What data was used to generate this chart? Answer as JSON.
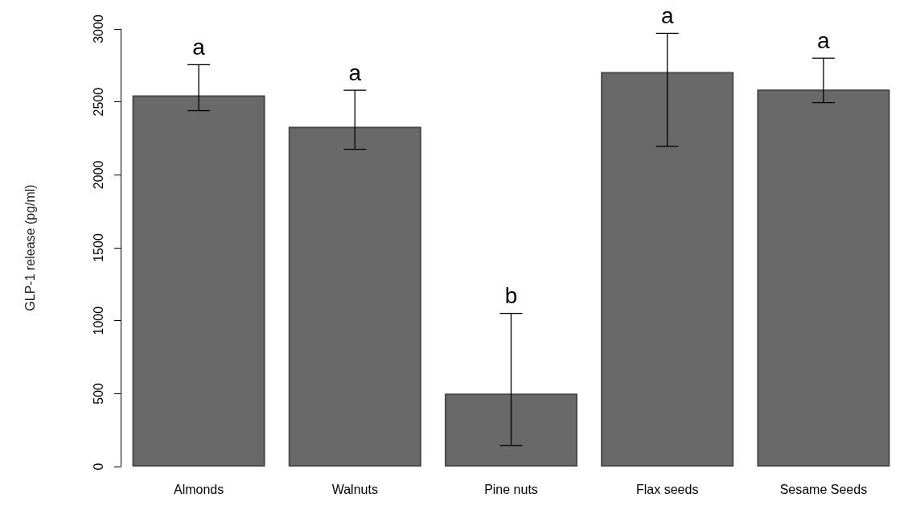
{
  "chart_data": {
    "type": "bar",
    "ylabel": "GLP-1 release (pg/ml)",
    "categories": [
      "Almonds",
      "Walnuts",
      "Pine nuts",
      "Flax seeds",
      "Sesame Seeds"
    ],
    "values": [
      2545,
      2330,
      500,
      2705,
      2585
    ],
    "errors": [
      [
        2440,
        2755
      ],
      [
        2175,
        2580
      ],
      [
        145,
        1050
      ],
      [
        2195,
        2970
      ],
      [
        2495,
        2800
      ]
    ],
    "color": "#696969",
    "ylim": [
      0,
      3000
    ],
    "yticks": [
      0,
      500,
      1000,
      1500,
      2000,
      2500,
      3000
    ],
    "grid": false,
    "annotations": [
      "a",
      "a",
      "b",
      "a",
      "a"
    ]
  }
}
